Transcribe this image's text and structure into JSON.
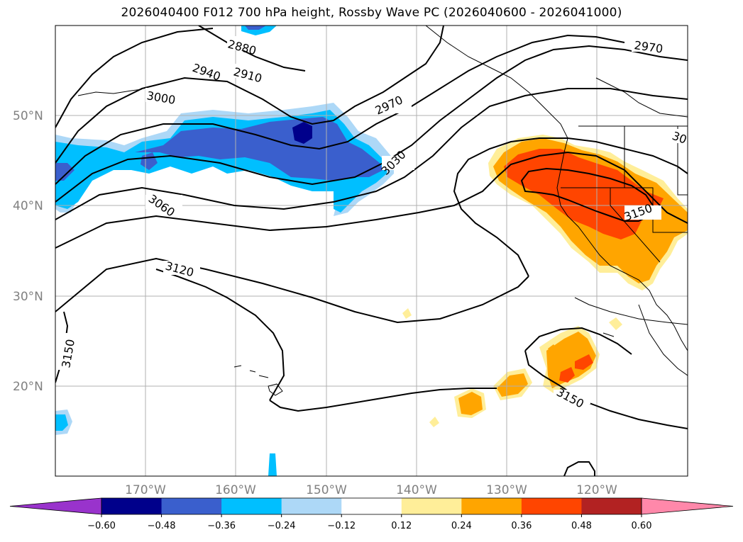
{
  "title": "2026040400 F012 700 hPa height, Rossby Wave PC (2026040600 - 2026041000)",
  "lat_labels": [
    "50°N",
    "40°N",
    "30°N",
    "20°N"
  ],
  "lon_labels": [
    "170°W",
    "160°W",
    "150°W",
    "140°W",
    "130°W",
    "120°W"
  ],
  "contour_labels": [
    "2880",
    "2910",
    "2940",
    "2970",
    "3000",
    "3030",
    "3060",
    "3120",
    "3150",
    "3150",
    "3150",
    "2970",
    "30"
  ],
  "colorbar": {
    "ticks": [
      "−0.60",
      "−0.48",
      "−0.36",
      "−0.24",
      "−0.12",
      "0.12",
      "0.24",
      "0.36",
      "0.48",
      "0.60"
    ],
    "colors": [
      "#9933cc",
      "#00008b",
      "#3a5fcd",
      "#00bfff",
      "#add8f7",
      "#ffffff",
      "#ffee99",
      "#ffa500",
      "#ff4500",
      "#b22222",
      "#ff88aa"
    ]
  },
  "chart_data": {
    "type": "map",
    "title": "2026040400 F012 700 hPa height, Rossby Wave PC (2026040600 - 2026041000)",
    "lon_range": [
      -180,
      -110
    ],
    "lat_range": [
      10,
      60
    ],
    "variables": {
      "contours": "700 hPa geopotential height",
      "shading": "Rossby Wave PC"
    },
    "contour_levels_labeled": [
      2880,
      2910,
      2940,
      2970,
      3000,
      3030,
      3060,
      3120,
      3150
    ],
    "shading_levels": [
      -0.6,
      -0.48,
      -0.36,
      -0.24,
      -0.12,
      0.12,
      0.24,
      0.36,
      0.48,
      0.6
    ],
    "features": [
      {
        "sign": "negative",
        "region": "central North Pacific",
        "lat_center": 45,
        "lon_center": -155,
        "min_approx": -0.48
      },
      {
        "sign": "positive",
        "region": "US West Coast",
        "lat_center": 40,
        "lon_center": -122,
        "max_approx": 0.48
      },
      {
        "sign": "positive",
        "region": "subtropical east Pacific",
        "lat_center": 22,
        "lon_center": -123,
        "max_approx": 0.48
      }
    ]
  }
}
